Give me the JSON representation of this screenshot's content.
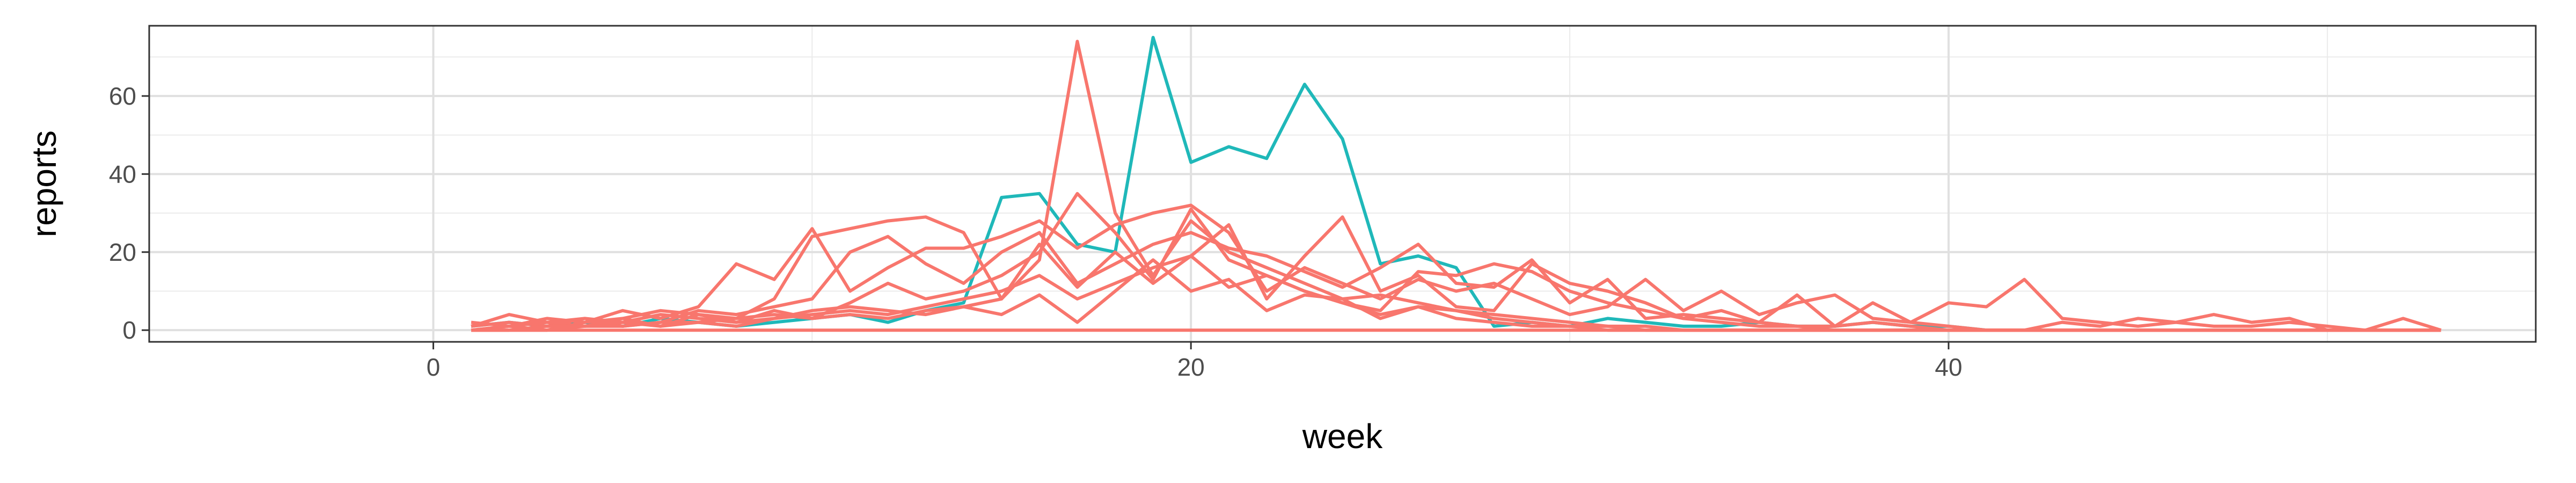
{
  "chart_data": {
    "type": "line",
    "title": "",
    "xlabel": "week",
    "ylabel": "reports",
    "xlim": [
      -7.5,
      55.5
    ],
    "ylim": [
      -3,
      78
    ],
    "x_ticks": [
      0,
      20,
      40
    ],
    "y_ticks": [
      0,
      20,
      40,
      60
    ],
    "grid": true,
    "legend": "none",
    "colors": {
      "salmon": "#F8766D",
      "teal": "#1FB8B9"
    },
    "series": [
      {
        "color": "#1FB8B9",
        "x": [
          1,
          2,
          3,
          4,
          5,
          6,
          7,
          8,
          9,
          10,
          11,
          12,
          13,
          14,
          15,
          16,
          17,
          18,
          19,
          20,
          21,
          22,
          23,
          24,
          25,
          26,
          27,
          28,
          29,
          30,
          31,
          32,
          33,
          34,
          35,
          36,
          37,
          38,
          39,
          40,
          41,
          42,
          43,
          44,
          45,
          46,
          47,
          48,
          49,
          50,
          51,
          52,
          53
        ],
        "y": [
          1,
          2,
          1,
          2,
          1,
          3,
          2,
          1,
          2,
          3,
          4,
          2,
          5,
          7,
          34,
          35,
          22,
          20,
          75,
          43,
          47,
          44,
          63,
          49,
          17,
          19,
          16,
          1,
          2,
          1,
          3,
          2,
          1,
          1,
          2,
          1,
          1,
          2,
          1,
          1,
          0,
          0,
          0,
          0,
          0,
          0,
          0,
          0,
          0,
          0,
          0,
          0,
          0
        ]
      },
      {
        "color": "#F8766D",
        "x": [
          1,
          2,
          3,
          4,
          5,
          6,
          7,
          8,
          9,
          10,
          11,
          12,
          13,
          14,
          15,
          16,
          17,
          18,
          19,
          20,
          21,
          22,
          23,
          24,
          25,
          26,
          27,
          28,
          29,
          30,
          31,
          32,
          33,
          34,
          35,
          36,
          37,
          38,
          39,
          40,
          41,
          42,
          43,
          44,
          45,
          46,
          47,
          48,
          49,
          50,
          51,
          52,
          53
        ],
        "y": [
          1,
          2,
          1,
          3,
          2,
          4,
          3,
          2,
          3,
          5,
          6,
          5,
          4,
          6,
          8,
          18,
          74,
          30,
          14,
          28,
          20,
          16,
          12,
          8,
          9,
          7,
          5,
          3,
          2,
          1,
          1,
          0,
          0,
          0,
          0,
          0,
          0,
          0,
          0,
          0,
          0,
          0,
          0,
          0,
          0,
          0,
          0,
          0,
          0,
          0,
          0,
          0,
          0
        ]
      },
      {
        "color": "#F8766D",
        "x": [
          1,
          2,
          3,
          4,
          5,
          6,
          7,
          8,
          9,
          10,
          11,
          12,
          13,
          14,
          15,
          16,
          17,
          18,
          19,
          20,
          21,
          22,
          23,
          24,
          25,
          26,
          27,
          28,
          29,
          30,
          31,
          32,
          33,
          34,
          35,
          36,
          37,
          38,
          39,
          40,
          41,
          42,
          43,
          44,
          45,
          46,
          47,
          48,
          49,
          50,
          51,
          52,
          53
        ],
        "y": [
          2,
          1,
          3,
          2,
          5,
          3,
          6,
          17,
          13,
          26,
          10,
          16,
          21,
          21,
          24,
          28,
          21,
          27,
          30,
          32,
          25,
          10,
          16,
          12,
          8,
          13,
          10,
          12,
          8,
          4,
          6,
          13,
          5,
          10,
          4,
          7,
          9,
          3,
          2,
          7,
          6,
          13,
          3,
          2,
          1,
          2,
          1,
          1,
          2,
          1,
          0,
          0,
          0
        ]
      },
      {
        "color": "#F8766D",
        "x": [
          1,
          2,
          3,
          4,
          5,
          6,
          7,
          8,
          9,
          10,
          11,
          12,
          13,
          14,
          15,
          16,
          17,
          18,
          19,
          20,
          21,
          22,
          23,
          24,
          25,
          26,
          27,
          28,
          29,
          30,
          31,
          32,
          33,
          34,
          35,
          36,
          37,
          38,
          39,
          40,
          41,
          42,
          43,
          44,
          45,
          46,
          47,
          48,
          49,
          50,
          51,
          52,
          53
        ],
        "y": [
          1,
          4,
          2,
          1,
          3,
          5,
          4,
          3,
          8,
          24,
          26,
          28,
          29,
          25,
          8,
          22,
          11,
          20,
          12,
          19,
          27,
          8,
          19,
          29,
          10,
          14,
          6,
          5,
          17,
          12,
          10,
          7,
          3,
          5,
          2,
          1,
          1,
          2,
          1,
          0,
          0,
          0,
          0,
          0,
          0,
          0,
          0,
          0,
          0,
          0,
          0,
          0,
          0
        ]
      },
      {
        "color": "#F8766D",
        "x": [
          1,
          2,
          3,
          4,
          5,
          6,
          7,
          8,
          9,
          10,
          11,
          12,
          13,
          14,
          15,
          16,
          17,
          18,
          19,
          20,
          21,
          22,
          23,
          24,
          25,
          26,
          27,
          28,
          29,
          30,
          31,
          32,
          33,
          34,
          35,
          36,
          37,
          38,
          39,
          40,
          41,
          42,
          43,
          44,
          45,
          46,
          47,
          48,
          49,
          50,
          51,
          52,
          53
        ],
        "y": [
          0,
          1,
          2,
          3,
          1,
          2,
          5,
          4,
          6,
          8,
          20,
          24,
          17,
          12,
          20,
          25,
          12,
          17,
          22,
          25,
          21,
          19,
          15,
          11,
          16,
          22,
          12,
          11,
          18,
          7,
          13,
          3,
          4,
          3,
          2,
          9,
          1,
          7,
          2,
          1,
          0,
          0,
          2,
          1,
          3,
          2,
          4,
          2,
          3,
          0,
          0,
          3,
          0
        ]
      },
      {
        "color": "#F8766D",
        "x": [
          1,
          2,
          3,
          4,
          5,
          6,
          7,
          8,
          9,
          10,
          11,
          12,
          13,
          14,
          15,
          16,
          17,
          18,
          19,
          20,
          21,
          22,
          23,
          24,
          25,
          26,
          27,
          28,
          29,
          30,
          31,
          32,
          33,
          34,
          35,
          36,
          37,
          38,
          39,
          40,
          41,
          42,
          43,
          44,
          45,
          46,
          47,
          48,
          49,
          50,
          51,
          52,
          53
        ],
        "y": [
          0,
          1,
          0,
          2,
          3,
          1,
          4,
          2,
          5,
          3,
          7,
          12,
          8,
          10,
          14,
          20,
          35,
          25,
          13,
          31,
          18,
          14,
          10,
          7,
          5,
          15,
          14,
          17,
          15,
          10,
          7,
          5,
          3,
          2,
          1,
          1,
          0,
          0,
          0,
          0,
          0,
          0,
          0,
          0,
          0,
          0,
          0,
          0,
          0,
          0,
          0,
          0,
          0
        ]
      },
      {
        "color": "#F8766D",
        "x": [
          1,
          2,
          3,
          4,
          5,
          6,
          7,
          8,
          9,
          10,
          11,
          12,
          13,
          14,
          15,
          16,
          17,
          18,
          19,
          20,
          21,
          22,
          23,
          24,
          25,
          26,
          27,
          28,
          29,
          30,
          31,
          32,
          33,
          34,
          35,
          36,
          37,
          38,
          39,
          40,
          41,
          42,
          43,
          44,
          45,
          46,
          47,
          48,
          49,
          50,
          51,
          52,
          53
        ],
        "y": [
          0,
          0,
          1,
          1,
          2,
          1,
          2,
          3,
          4,
          3,
          4,
          3,
          5,
          6,
          4,
          9,
          2,
          10,
          18,
          10,
          13,
          5,
          9,
          8,
          3,
          6,
          5,
          4,
          3,
          2,
          1,
          1,
          0,
          0,
          0,
          0,
          0,
          0,
          0,
          0,
          0,
          0,
          0,
          0,
          0,
          0,
          0,
          0,
          0,
          0,
          0,
          0,
          0
        ]
      },
      {
        "color": "#F8766D",
        "x": [
          1,
          2,
          3,
          4,
          5,
          6,
          7,
          8,
          9,
          10,
          11,
          12,
          13,
          14,
          15,
          16,
          17,
          18,
          19,
          20,
          21,
          22,
          23,
          24,
          25,
          26,
          27,
          28,
          29,
          30,
          31,
          32,
          33,
          34,
          35,
          36,
          37,
          38,
          39,
          40,
          41,
          42,
          43,
          44,
          45,
          46,
          47,
          48,
          49,
          50,
          51,
          52,
          53
        ],
        "y": [
          0,
          0,
          0,
          1,
          1,
          2,
          2,
          1,
          3,
          4,
          5,
          4,
          6,
          8,
          10,
          14,
          8,
          12,
          16,
          19,
          11,
          14,
          10,
          7,
          4,
          6,
          3,
          2,
          1,
          1,
          0,
          0,
          0,
          0,
          0,
          0,
          0,
          0,
          0,
          0,
          0,
          0,
          0,
          0,
          0,
          0,
          0,
          0,
          0,
          0,
          0,
          0,
          0
        ]
      },
      {
        "color": "#F8766D",
        "x": [
          1,
          2,
          3,
          4,
          5,
          6,
          7,
          8,
          9,
          10,
          11,
          12,
          13,
          14,
          15,
          16,
          17,
          18,
          19,
          20,
          21,
          22,
          23,
          24,
          25,
          26,
          27,
          28,
          29,
          30,
          31,
          32,
          33,
          34,
          35,
          36,
          37,
          38,
          39,
          40,
          41,
          42,
          43,
          44,
          45,
          46,
          47,
          48,
          49,
          50,
          51,
          52,
          53
        ],
        "y": [
          0,
          0,
          0,
          0,
          0,
          0,
          0,
          0,
          0,
          0,
          0,
          0,
          0,
          0,
          0,
          0,
          0,
          0,
          0,
          0,
          0,
          0,
          0,
          0,
          0,
          0,
          0,
          0,
          0,
          0,
          0,
          0,
          0,
          0,
          0,
          0,
          0,
          0,
          0,
          0,
          0,
          0,
          0,
          0,
          0,
          0,
          0,
          0,
          0,
          0,
          0,
          0,
          0
        ]
      }
    ]
  }
}
